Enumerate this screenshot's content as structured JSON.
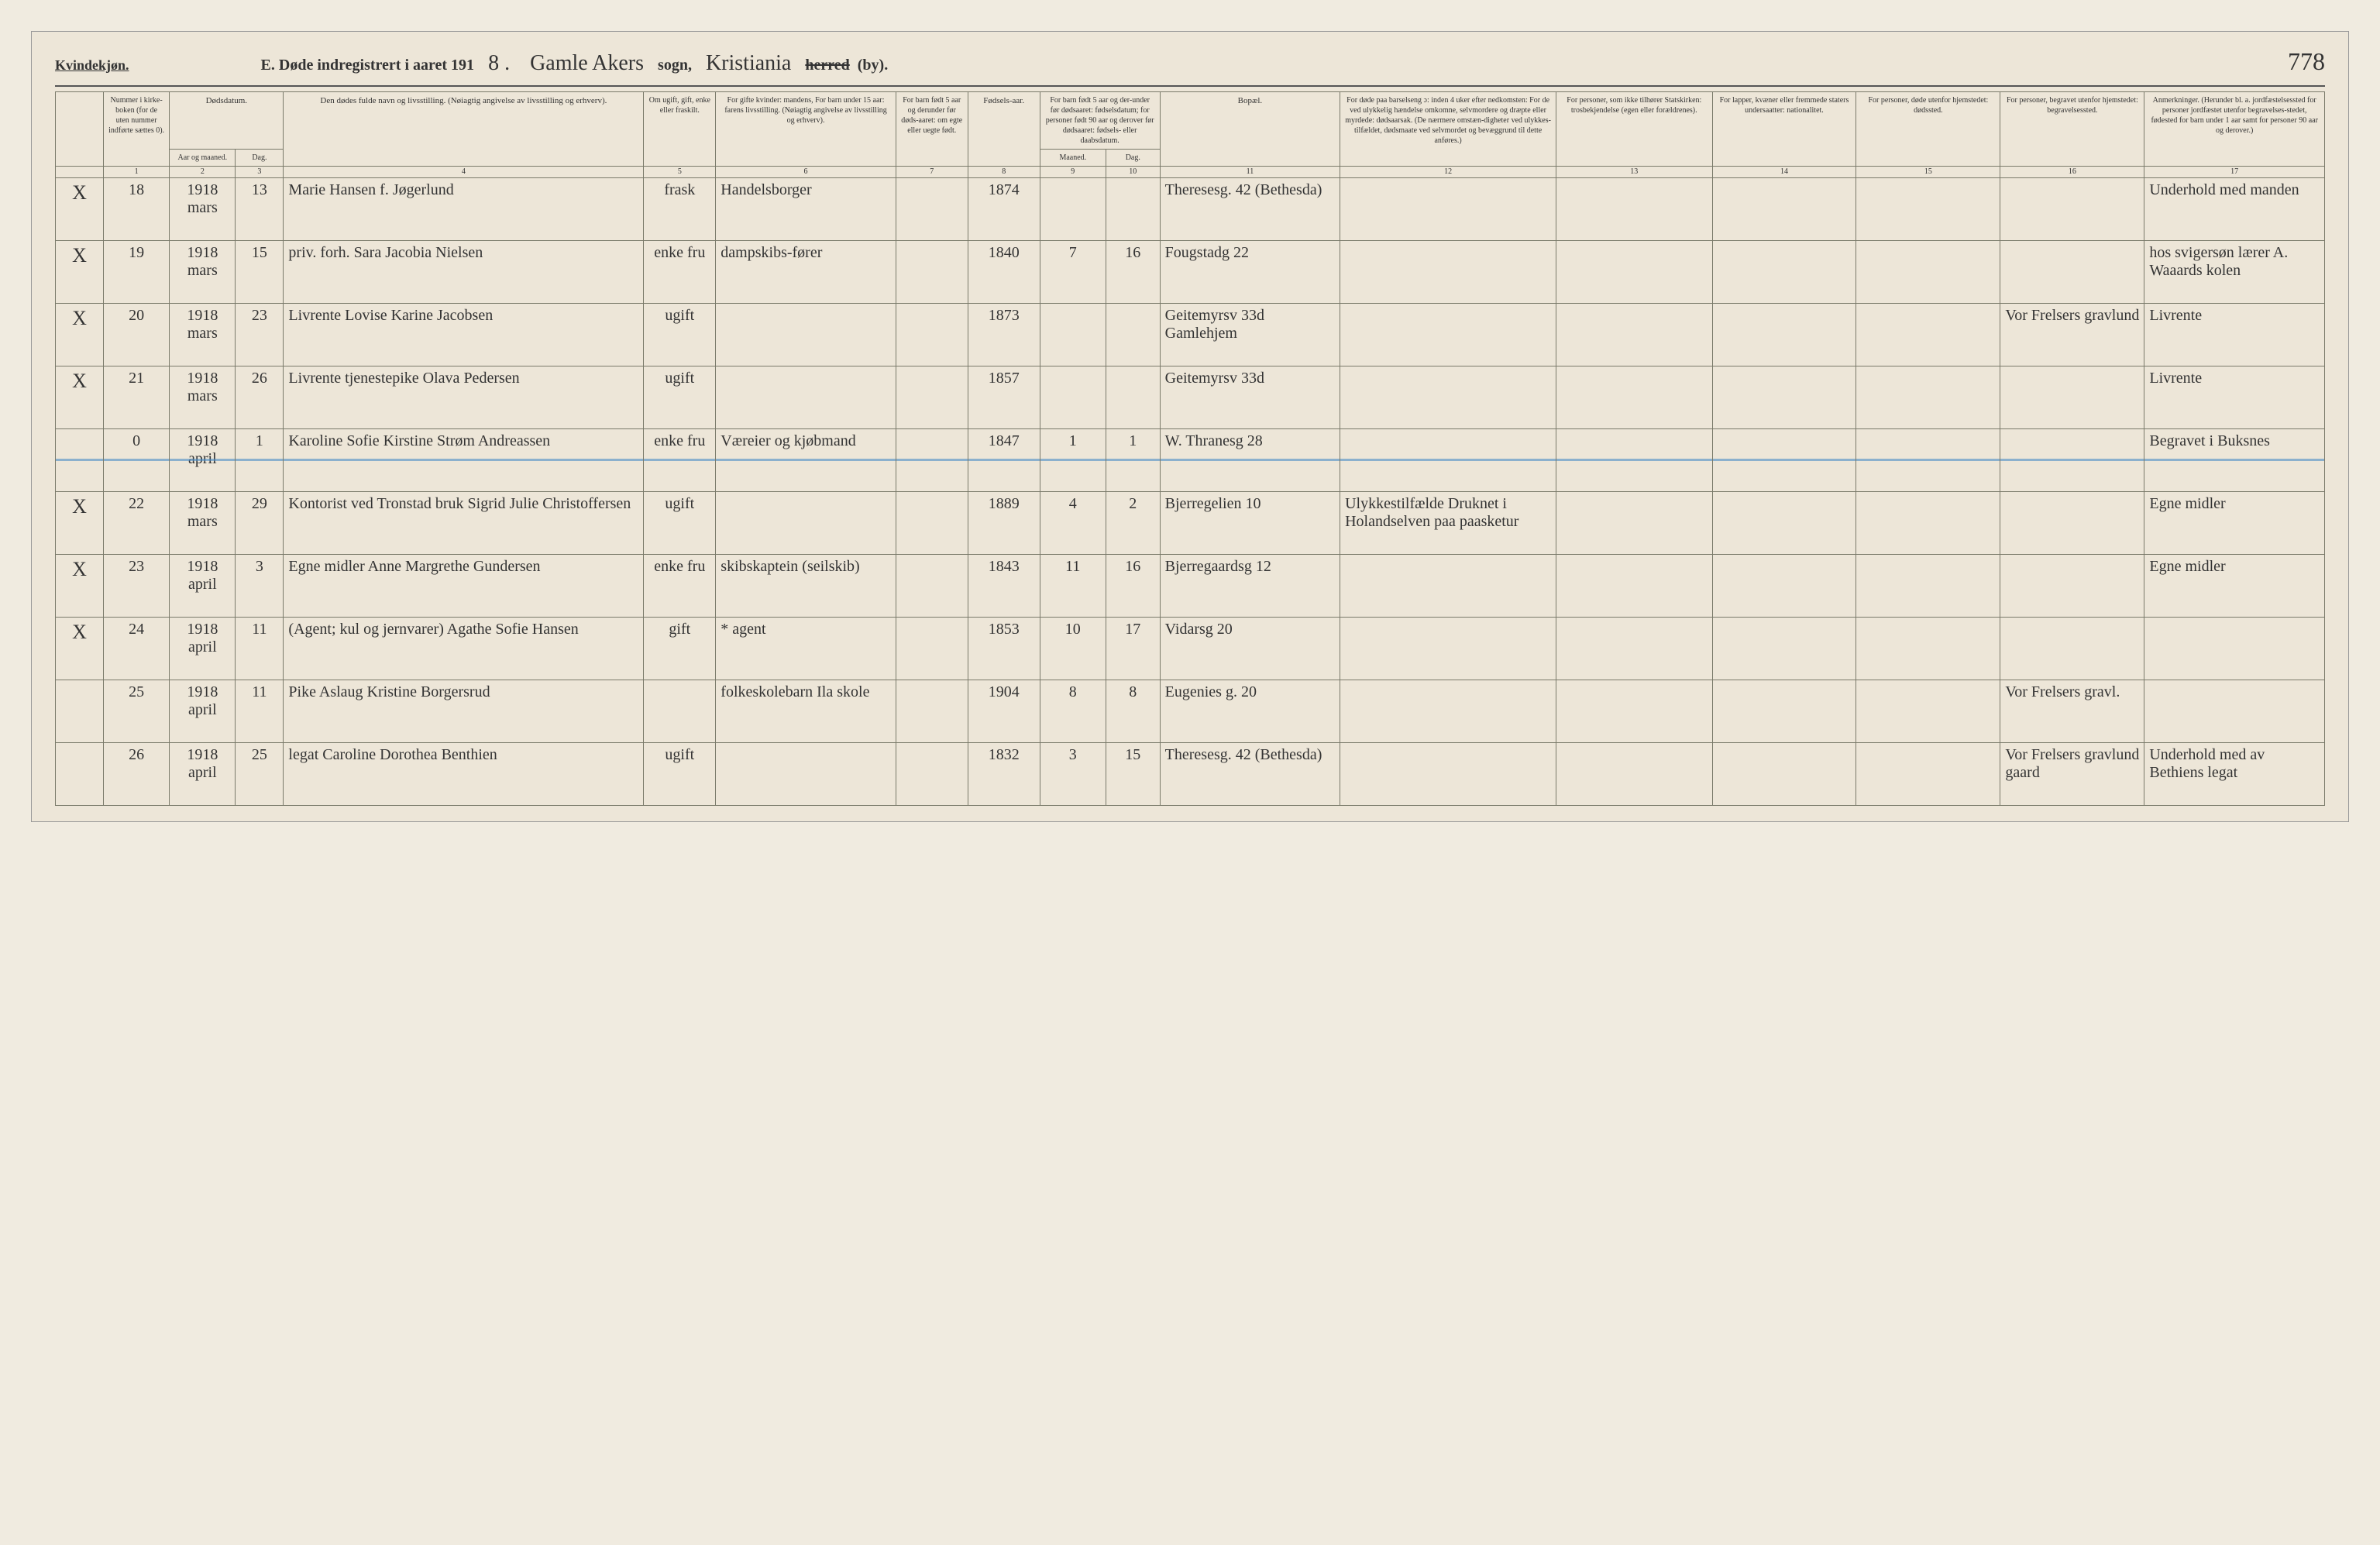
{
  "header": {
    "kjonn": "Kvindekjøn.",
    "title_prefix": "E.  Døde indregistrert i aaret 191",
    "year_suffix": "8 .",
    "parish_script": "Gamle Akers",
    "sogn_label": "sogn,",
    "district_script": "Kristiania",
    "herred_strike": "herred",
    "by_label": "(by).",
    "page_number": "778"
  },
  "columns": {
    "c1": "Nummer i kirke-boken (for de uten nummer indførte sættes 0).",
    "c2": "Dødsdatum.",
    "c2a": "Aar og maaned.",
    "c2b": "Dag.",
    "c4": "Den dødes fulde navn og livsstilling. (Nøiagtig angivelse av livsstilling og erhverv).",
    "c5": "Om ugift, gift, enke eller fraskilt.",
    "c6": "For gifte kvinder: mandens, For barn under 15 aar: farens livsstilling. (Nøiagtig angivelse av livsstilling og erhverv).",
    "c7": "For barn født 5 aar og derunder før døds-aaret: om egte eller uegte født.",
    "c8": "Fødsels-aar.",
    "c9": "For barn født 5 aar og der-under før dødsaaret: fødselsdatum; for personer født 90 aar og derover før dødsaaret: fødsels- eller daabsdatum.",
    "c9a": "Maaned.",
    "c9b": "Dag.",
    "c11": "Bopæl.",
    "c12": "For døde paa barselseng ɔ: inden 4 uker efter nedkomsten: For de ved ulykkelig hændelse omkomne, selvmordere og dræpte eller myrdede: dødsaarsak. (De nærmere omstæn-digheter ved ulykkes-tilfældet, dødsmaate ved selvmordet og bevæggrund til dette anføres.)",
    "c13": "For personer, som ikke tilhører Statskirken: trosbekjendelse (egen eller forældrenes).",
    "c14": "For lapper, kvæner eller fremmede staters undersaatter: nationalitet.",
    "c15": "For personer, døde utenfor hjemstedet: dødssted.",
    "c16": "For personer, begravet utenfor hjemstedet: begravelsessted.",
    "c17": "Anmerkninger. (Herunder bl. a. jordfæstelsessted for personer jordfæstet utenfor begravelses-stedet, fødested for barn under 1 aar samt for personer 90 aar og derover.)"
  },
  "colnums": [
    "",
    "1",
    "2",
    "3",
    "4",
    "5",
    "6",
    "7",
    "8",
    "9",
    "10",
    "11",
    "12",
    "13",
    "14",
    "15",
    "16",
    "17"
  ],
  "rows": [
    {
      "x": "X",
      "num": "18",
      "ym": "1918 mars",
      "day": "13",
      "name": "Marie Hansen f. Jøgerlund",
      "status": "frask",
      "occ": "Handelsborger",
      "egte": "",
      "byear": "1874",
      "m": "",
      "d": "",
      "bopael": "Theresesg. 42 (Bethesda)",
      "cause": "",
      "c13": "",
      "c14": "",
      "c15": "",
      "c16": "",
      "anm": "Underhold med manden",
      "blue": false
    },
    {
      "x": "X",
      "num": "19",
      "ym": "1918 mars",
      "day": "15",
      "name": "priv. forh.\nSara Jacobia Nielsen",
      "status": "enke fru",
      "occ": "dampskibs-fører",
      "egte": "",
      "byear": "1840",
      "m": "7",
      "d": "16",
      "bopael": "Fougstadg 22",
      "cause": "",
      "c13": "",
      "c14": "",
      "c15": "",
      "c16": "",
      "anm": "hos svigersøn lærer A. Waaards kolen",
      "blue": false
    },
    {
      "x": "X",
      "num": "20",
      "ym": "1918 mars",
      "day": "23",
      "name": "Livrente\nLovise Karine Jacobsen",
      "status": "ugift",
      "occ": "",
      "egte": "",
      "byear": "1873",
      "m": "",
      "d": "",
      "bopael": "Geitemyrsv 33d Gamlehjem",
      "cause": "",
      "c13": "",
      "c14": "",
      "c15": "",
      "c16": "Vor Frelsers gravlund",
      "anm": "Livrente",
      "blue": false
    },
    {
      "x": "X",
      "num": "21",
      "ym": "1918 mars",
      "day": "26",
      "name": "Livrente tjenestepike\nOlava Pedersen",
      "status": "ugift",
      "occ": "",
      "egte": "",
      "byear": "1857",
      "m": "",
      "d": "",
      "bopael": "Geitemyrsv 33d",
      "cause": "",
      "c13": "",
      "c14": "",
      "c15": "",
      "c16": "",
      "anm": "Livrente",
      "blue": false
    },
    {
      "x": "",
      "num": "0",
      "ym": "1918 april",
      "day": "1",
      "name": "Karoline Sofie Kirstine Strøm Andreassen",
      "status": "enke fru",
      "occ": "Væreier og kjøbmand",
      "egte": "",
      "byear": "1847",
      "m": "1",
      "d": "1",
      "bopael": "W. Thranesg 28",
      "cause": "",
      "c13": "",
      "c14": "",
      "c15": "",
      "c16": "",
      "anm": "Begravet i Buksnes",
      "blue": true
    },
    {
      "x": "X",
      "num": "22",
      "ym": "1918 mars",
      "day": "29",
      "name": "Kontorist ved Tronstad bruk\nSigrid Julie Christoffersen",
      "status": "ugift",
      "occ": "",
      "egte": "",
      "byear": "1889",
      "m": "4",
      "d": "2",
      "bopael": "Bjerregelien 10",
      "cause": "Ulykkestilfælde Druknet i Holandselven paa paasketur",
      "c13": "",
      "c14": "",
      "c15": "",
      "c16": "",
      "anm": "Egne midler",
      "blue": false
    },
    {
      "x": "X",
      "num": "23",
      "ym": "1918 april",
      "day": "3",
      "name": "Egne midler\nAnne Margrethe Gundersen",
      "status": "enke fru",
      "occ": "skibskaptein (seilskib)",
      "egte": "",
      "byear": "1843",
      "m": "11",
      "d": "16",
      "bopael": "Bjerregaardsg 12",
      "cause": "",
      "c13": "",
      "c14": "",
      "c15": "",
      "c16": "",
      "anm": "Egne midler",
      "blue": false
    },
    {
      "x": "X",
      "num": "24",
      "ym": "1918 april",
      "day": "11",
      "name": "(Agent; kul og jernvarer)\nAgathe Sofie Hansen",
      "status": "gift",
      "occ": "* agent",
      "egte": "",
      "byear": "1853",
      "m": "10",
      "d": "17",
      "bopael": "Vidarsg 20",
      "cause": "",
      "c13": "",
      "c14": "",
      "c15": "",
      "c16": "",
      "anm": "",
      "blue": false
    },
    {
      "x": "",
      "num": "25",
      "ym": "1918 april",
      "day": "11",
      "name": "Pike Aslaug Kristine Borgersrud",
      "status": "",
      "occ": "folkeskolebarn Ila skole",
      "egte": "",
      "byear": "1904",
      "m": "8",
      "d": "8",
      "bopael": "Eugenies g. 20",
      "cause": "",
      "c13": "",
      "c14": "",
      "c15": "",
      "c16": "Vor Frelsers gravl.",
      "anm": "",
      "blue": false
    },
    {
      "x": "",
      "num": "26",
      "ym": "1918 april",
      "day": "25",
      "name": "legat\nCaroline Dorothea Benthien",
      "status": "ugift",
      "occ": "",
      "egte": "",
      "byear": "1832",
      "m": "3",
      "d": "15",
      "bopael": "Theresesg. 42 (Bethesda)",
      "cause": "",
      "c13": "",
      "c14": "",
      "c15": "",
      "c16": "Vor Frelsers gravlund gaard",
      "anm": "Underhold med av Bethiens legat",
      "blue": false
    }
  ]
}
